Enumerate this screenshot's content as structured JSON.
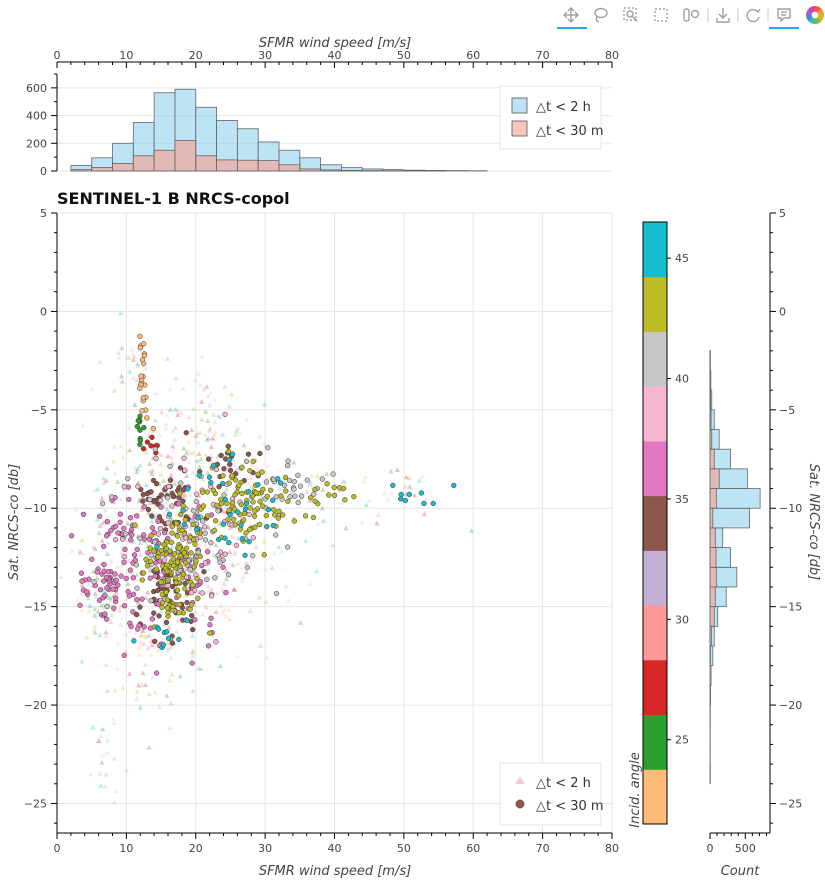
{
  "toolbar": {
    "tools": [
      "pan-icon",
      "lasso-select-icon",
      "box-zoom-icon",
      "box-select-icon",
      "wheel-zoom-icon",
      "save-icon",
      "reset-icon",
      "hover-icon",
      "bokeh-logo"
    ],
    "active": [
      "pan-icon",
      "hover-icon"
    ],
    "accent": "#26aae1"
  },
  "chart_data": [
    {
      "id": "top-histogram",
      "type": "bar",
      "xlabel": "SFMR wind speed [m/s]",
      "xlim": [
        0,
        80
      ],
      "ylim": [
        0,
        700
      ],
      "x_ticks": [
        0,
        10,
        20,
        30,
        40,
        50,
        60,
        70,
        80
      ],
      "y_ticks": [
        0,
        200,
        400,
        600
      ],
      "bin_edges": [
        2,
        5,
        8,
        11,
        14,
        17,
        20,
        23,
        26,
        29,
        32,
        35,
        38,
        41,
        44,
        47,
        50,
        53,
        56,
        59,
        62
      ],
      "series": [
        {
          "name": "△t < 2 h",
          "color": "#87ceeb",
          "values": [
            40,
            95,
            200,
            350,
            565,
            590,
            460,
            365,
            305,
            210,
            150,
            95,
            45,
            25,
            15,
            10,
            6,
            4,
            3,
            2
          ]
        },
        {
          "name": "△t < 30 m",
          "color": "#f4a79a",
          "values": [
            10,
            25,
            55,
            110,
            150,
            220,
            110,
            80,
            78,
            75,
            45,
            15,
            8,
            4,
            3,
            2,
            1,
            1,
            0,
            0
          ]
        }
      ],
      "legend": "top-right"
    },
    {
      "id": "main-scatter",
      "type": "scatter",
      "title": "SENTINEL-1 B NRCS-copol",
      "xlabel": "SFMR wind speed [m/s]",
      "ylabel": "Sat. NRCS-co [db]",
      "xlim": [
        0,
        80
      ],
      "ylim": [
        -26.5,
        5
      ],
      "x_ticks": [
        0,
        10,
        20,
        30,
        40,
        50,
        60,
        70,
        80
      ],
      "y_ticks": [
        5,
        0,
        -5,
        -10,
        -15,
        -20,
        -25
      ],
      "y_tick_labels": [
        "5",
        "0",
        "−5",
        "−10",
        "−15",
        "−20",
        "−25"
      ],
      "grid": true,
      "legend": "bottom-right",
      "series": [
        {
          "name": "△t < 2 h",
          "marker": "triangle",
          "alpha": 0.3
        },
        {
          "name": "△t < 30 m",
          "marker": "circle",
          "alpha": 1.0
        }
      ],
      "colorbar": {
        "label": "Incid. angle",
        "range": [
          21.5,
          46.5
        ],
        "ticks": [
          25,
          30,
          35,
          40,
          45
        ],
        "palette": [
          "#ffbb78",
          "#2ca02c",
          "#d62728",
          "#ff9896",
          "#c5b0d5",
          "#8c564b",
          "#e377c2",
          "#f7b6d2",
          "#c7c7c7",
          "#bcbd22",
          "#17becf"
        ]
      },
      "clusters": [
        {
          "cx": 12.5,
          "cy": -3.5,
          "sx": 0.4,
          "sy": 1.0,
          "n": 22,
          "c": 0
        },
        {
          "cx": 12.0,
          "cy": -5.8,
          "sx": 0.4,
          "sy": 0.6,
          "n": 10,
          "c": 1
        },
        {
          "cx": 13.8,
          "cy": -6.6,
          "sx": 0.6,
          "sy": 0.3,
          "n": 7,
          "c": 2
        },
        {
          "cx": 15.5,
          "cy": -9.5,
          "sx": 2.0,
          "sy": 0.7,
          "n": 45,
          "c": 5
        },
        {
          "cx": 24.0,
          "cy": -8.0,
          "sx": 3.0,
          "sy": 0.8,
          "n": 25,
          "c": 5
        },
        {
          "cx": 16.0,
          "cy": -14.5,
          "sx": 2.5,
          "sy": 1.0,
          "n": 50,
          "c": 5
        },
        {
          "cx": 14.0,
          "cy": -12.5,
          "sx": 5.0,
          "sy": 2.2,
          "n": 140,
          "c": 6
        },
        {
          "cx": 7.0,
          "cy": -14.0,
          "sx": 1.5,
          "sy": 0.8,
          "n": 35,
          "c": 6
        },
        {
          "cx": 20.0,
          "cy": -11.0,
          "sx": 5.0,
          "sy": 1.8,
          "n": 70,
          "c": 7
        },
        {
          "cx": 20.0,
          "cy": -11.5,
          "sx": 5.5,
          "sy": 2.0,
          "n": 70,
          "c": 8
        },
        {
          "cx": 34.0,
          "cy": -9.0,
          "sx": 2.5,
          "sy": 0.7,
          "n": 25,
          "c": 8
        },
        {
          "cx": 17.0,
          "cy": -13.0,
          "sx": 2.0,
          "sy": 1.5,
          "n": 110,
          "c": 9
        },
        {
          "cx": 27.0,
          "cy": -9.7,
          "sx": 4.0,
          "sy": 0.9,
          "n": 90,
          "c": 9
        },
        {
          "cx": 40.0,
          "cy": -9.2,
          "sx": 2.0,
          "sy": 0.3,
          "n": 10,
          "c": 9
        },
        {
          "cx": 25.0,
          "cy": -10.0,
          "sx": 4.0,
          "sy": 1.5,
          "n": 35,
          "c": 10
        },
        {
          "cx": 52.0,
          "cy": -9.2,
          "sx": 4.0,
          "sy": 0.3,
          "n": 9,
          "c": 10
        },
        {
          "cx": 16.0,
          "cy": -16.5,
          "sx": 2.0,
          "sy": 0.6,
          "n": 10,
          "c": 10
        }
      ],
      "tri_clusters": [
        {
          "cx": 18.0,
          "cy": -11.0,
          "sx": 7.0,
          "sy": 3.0,
          "n": 420
        },
        {
          "cx": 22.0,
          "cy": -6.0,
          "sx": 4.0,
          "sy": 1.2,
          "n": 70
        },
        {
          "cx": 10.0,
          "cy": -3.0,
          "sx": 1.5,
          "sy": 1.0,
          "n": 25
        },
        {
          "cx": 40.0,
          "cy": -9.5,
          "sx": 8.0,
          "sy": 0.8,
          "n": 60
        },
        {
          "cx": 12.0,
          "cy": -17.5,
          "sx": 4.0,
          "sy": 2.0,
          "n": 70
        },
        {
          "cx": 7.0,
          "cy": -23.0,
          "sx": 1.0,
          "sy": 1.2,
          "n": 18
        },
        {
          "cx": 6.0,
          "cy": -14.5,
          "sx": 2.0,
          "sy": 1.0,
          "n": 40
        }
      ]
    },
    {
      "id": "right-histogram",
      "type": "bar",
      "orientation": "horizontal",
      "xlabel": "Count",
      "ylabel": "Sat. NRCS-co [db]",
      "xlim": [
        0,
        850
      ],
      "x_ticks": [
        0,
        500
      ],
      "y_ticks": [
        5,
        0,
        -5,
        -10,
        -15,
        -20,
        -25
      ],
      "y_tick_labels": [
        "5",
        "0",
        "−5",
        "−10",
        "−15",
        "−20",
        "−25"
      ],
      "bin_edges": [
        -24.0,
        -23.0,
        -22.0,
        -21.0,
        -20.0,
        -19.0,
        -18.0,
        -17.0,
        -16.0,
        -15.0,
        -14.0,
        -13.0,
        -12.0,
        -11.0,
        -10.0,
        -9.0,
        -8.0,
        -7.0,
        -6.0,
        -5.0,
        -4.0,
        -3.0,
        -2.0
      ],
      "series": [
        {
          "name": "△t < 2 h",
          "color": "#87ceeb",
          "values": [
            5,
            3,
            3,
            4,
            8,
            15,
            40,
            60,
            110,
            230,
            380,
            290,
            180,
            560,
            710,
            530,
            290,
            130,
            60,
            25,
            12,
            6
          ]
        },
        {
          "name": "△t < 30 m",
          "color": "#f4a79a",
          "values": [
            0,
            0,
            0,
            0,
            0,
            0,
            5,
            20,
            60,
            75,
            90,
            85,
            75,
            40,
            90,
            130,
            60,
            25,
            15,
            8,
            5,
            2
          ]
        }
      ]
    }
  ]
}
